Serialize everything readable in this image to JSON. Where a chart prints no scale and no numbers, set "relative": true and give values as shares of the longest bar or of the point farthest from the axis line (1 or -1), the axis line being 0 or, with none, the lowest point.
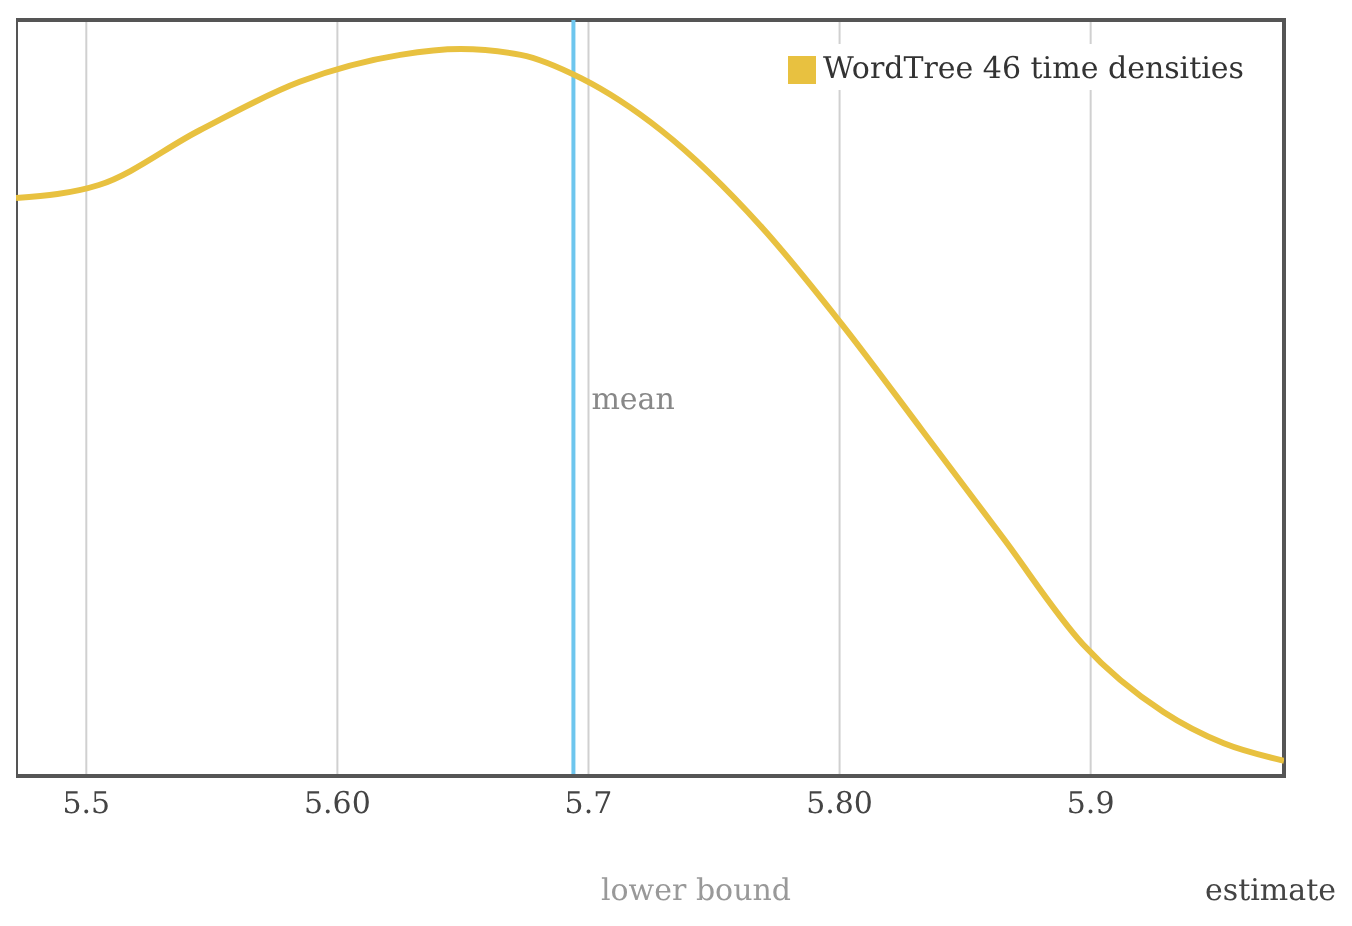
{
  "chart_data": {
    "type": "line",
    "relative": true,
    "x": [
      5.472,
      5.505,
      5.545,
      5.585,
      5.625,
      5.649,
      5.673,
      5.697,
      5.729,
      5.769,
      5.801,
      5.833,
      5.865,
      5.897,
      5.929,
      5.953,
      5.977
    ],
    "series": [
      {
        "name": "WordTree 46 time densities",
        "color": "#e8c140",
        "values": [
          0.795,
          0.813,
          0.888,
          0.955,
          0.992,
          1,
          0.992,
          0.96,
          0.888,
          0.755,
          0.621,
          0.475,
          0.328,
          0.181,
          0.088,
          0.045,
          0.021
        ]
      }
    ],
    "xlim": [
      5.472,
      5.977
    ],
    "xticks": [
      5.5,
      {
        "value": 5.6,
        "label": "5.60"
      },
      5.7,
      {
        "value": 5.8,
        "label": "5.80"
      },
      5.9
    ],
    "xlabel": "lower bound",
    "annotations": [
      "estimate"
    ],
    "ref_lines": [
      {
        "axis": "x",
        "value": 5.694,
        "label": "mean",
        "color": "#6ec6ee"
      }
    ],
    "grid": "x",
    "legend": "top right",
    "marker": "none",
    "line_style": "solid"
  }
}
